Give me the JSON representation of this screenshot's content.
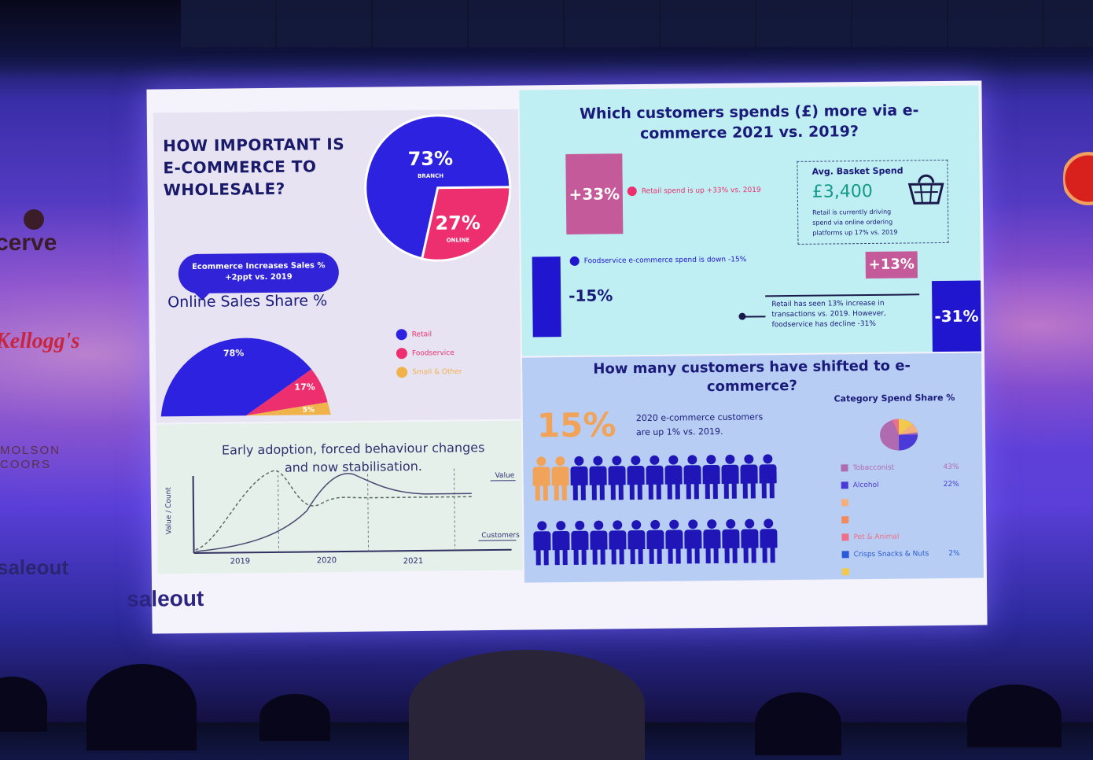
{
  "sponsors": {
    "left": [
      "cerve",
      "Kellogg's",
      "MOLSON",
      "COORS",
      "saleout"
    ]
  },
  "slide": {
    "brand": "saleout",
    "panel_importance": {
      "title_lines": [
        "HOW IMPORTANT IS",
        "E-COMMERCE TO",
        "WHOLESALE?"
      ],
      "branch_pct": "73%",
      "branch_label": "BRANCH",
      "online_pct": "27%",
      "online_label": "ONLINE",
      "bubble_lines": [
        "Ecommerce Increases Sales %",
        "+2ppt vs. 2019"
      ],
      "share_title": "Online Sales Share %",
      "share_values": {
        "retail": "78%",
        "foodservice": "17%",
        "small_other": "5%"
      },
      "legend": [
        "Retail",
        "Foodservice",
        "Small & Other"
      ],
      "colors": {
        "branch": "#2d22e0",
        "online": "#ee2f6f",
        "other": "#f0b24a"
      }
    },
    "panel_spend": {
      "title_lines": [
        "Which customers spends (£) more via e-",
        "commerce 2021 vs. 2019?"
      ],
      "retail_tag": "+33%",
      "retail_note": "Retail spend is up +33% vs. 2019",
      "foodservice_tag": "-15%",
      "foodservice_note": "Foodservice e-commerce spend is down -15%",
      "basket_title": "Avg. Basket Spend",
      "basket_value": "£3,400",
      "basket_note_lines": [
        "Retail is currently driving",
        "spend via online ordering",
        "platforms up 17% vs. 2019"
      ],
      "tx_up": "+13%",
      "tx_down": "-31%",
      "tx_note_lines": [
        "Retail has seen 13% increase in",
        "transactions vs. 2019. However,",
        "foodservice has decline -31%"
      ]
    },
    "panel_shift": {
      "title_lines": [
        "How many customers have shifted to e-",
        "commerce?"
      ],
      "big_pct": "15%",
      "note_lines": [
        "2020 e-commerce customers",
        "are up 1% vs. 2019."
      ],
      "category_title": "Category Spend Share %",
      "categories": [
        {
          "name": "Tobacconist",
          "value": "43%",
          "color": "#b06ab0"
        },
        {
          "name": "Alcohol",
          "value": "22%",
          "color": "#4a3ad8"
        },
        {
          "name": "",
          "value": "",
          "color": "#f4b07a"
        },
        {
          "name": "",
          "value": "",
          "color": "#f08a5a"
        },
        {
          "name": "Pet & Animal",
          "value": "",
          "color": "#ee6f8a"
        },
        {
          "name": "Crisps Snacks & Nuts",
          "value": "2%",
          "color": "#2b5ad8"
        },
        {
          "name": "",
          "value": "",
          "color": "#f2c94c"
        }
      ]
    },
    "panel_trend": {
      "title_lines": [
        "Early adoption, forced behaviour changes",
        "and now stabilisation."
      ],
      "y_label": "Value / Count",
      "x_labels": [
        "2019",
        "2020",
        "2021"
      ],
      "series_labels": [
        "Value",
        "Customers"
      ]
    }
  }
}
